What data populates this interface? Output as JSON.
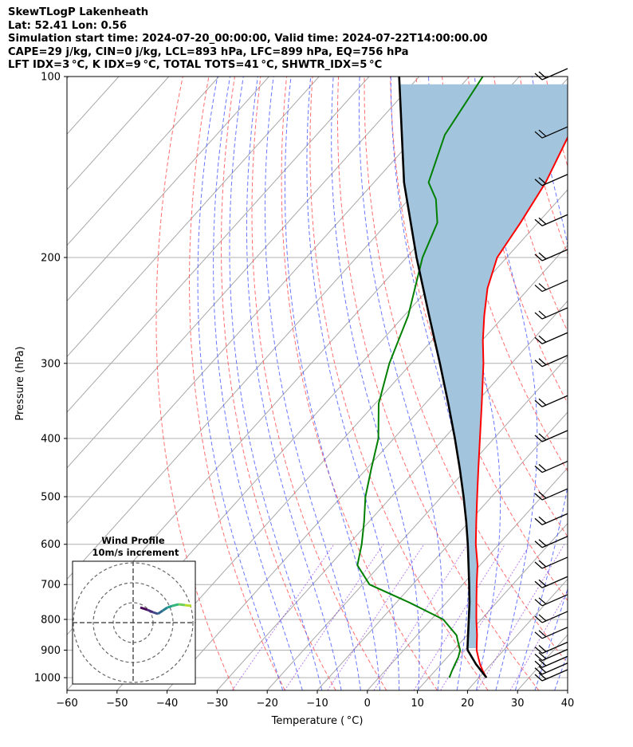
{
  "header": {
    "line1": "SkewTLogP Lakenheath",
    "line2": "Lat: 52.41   Lon: 0.56",
    "line3": "Simulation start time: 2024-07-20_00:00:00, Valid time: 2024-07-22T14:00:00.00",
    "line4": "CAPE=29 j/kg, CIN=0 j/kg, LCL=893 hPa, LFC=899 hPa, EQ=756 hPa",
    "line5": "LFT IDX=3 °C, K IDX=9 °C, TOTAL TOTS=41 °C, SHWTR_IDX=5 °C"
  },
  "colors": {
    "temperature": "#ff0000",
    "dewpoint": "#008000",
    "parcel": "#000000",
    "cape_fill": "#a2c5dd",
    "dry_adiabat": "#ff5555",
    "moist_adiabat": "#4455ff",
    "mixing_ratio": "#8a2be2",
    "isotherm_grid": "#aaaaaa"
  },
  "chart_data": {
    "type": "skewt",
    "xlabel": "Temperature ( °C)",
    "ylabel": "Pressure (hPa)",
    "xlim": [
      -60,
      40
    ],
    "ylim": [
      1050,
      100
    ],
    "yscale": "log",
    "x_ticks": [
      "−60",
      "−50",
      "−40",
      "−30",
      "−20",
      "−10",
      "0",
      "10",
      "20",
      "30",
      "40"
    ],
    "y_ticks": [
      "1000",
      "900",
      "800",
      "700",
      "600",
      "500",
      "400",
      "300",
      "200",
      "100"
    ],
    "temperature": [
      {
        "p": 1000,
        "t": 21.5
      },
      {
        "p": 975,
        "t": 19.6
      },
      {
        "p": 950,
        "t": 17.8
      },
      {
        "p": 925,
        "t": 16.2
      },
      {
        "p": 900,
        "t": 14.6
      },
      {
        "p": 875,
        "t": 13.3
      },
      {
        "p": 850,
        "t": 12.0
      },
      {
        "p": 800,
        "t": 9.0
      },
      {
        "p": 750,
        "t": 6.0
      },
      {
        "p": 700,
        "t": 2.8
      },
      {
        "p": 650,
        "t": -0.5
      },
      {
        "p": 600,
        "t": -4.6
      },
      {
        "p": 550,
        "t": -8.6
      },
      {
        "p": 500,
        "t": -12.9
      },
      {
        "p": 450,
        "t": -17.6
      },
      {
        "p": 400,
        "t": -22.8
      },
      {
        "p": 350,
        "t": -28.7
      },
      {
        "p": 300,
        "t": -35.6
      },
      {
        "p": 275,
        "t": -39.8
      },
      {
        "p": 250,
        "t": -44.0
      },
      {
        "p": 225,
        "t": -48.3
      },
      {
        "p": 200,
        "t": -51.9
      },
      {
        "p": 175,
        "t": -53.5
      },
      {
        "p": 150,
        "t": -55.7
      },
      {
        "p": 125,
        "t": -59.6
      },
      {
        "p": 110,
        "t": -63.6
      },
      {
        "p": 100,
        "t": -66.9
      }
    ],
    "dewpoint": [
      {
        "p": 1000,
        "t": 14.1
      },
      {
        "p": 975,
        "t": 13.4
      },
      {
        "p": 950,
        "t": 12.8
      },
      {
        "p": 925,
        "t": 12.2
      },
      {
        "p": 900,
        "t": 11.3
      },
      {
        "p": 875,
        "t": 9.6
      },
      {
        "p": 850,
        "t": 7.9
      },
      {
        "p": 800,
        "t": 2.4
      },
      {
        "p": 750,
        "t": -7.4
      },
      {
        "p": 700,
        "t": -18.6
      },
      {
        "p": 650,
        "t": -24.5
      },
      {
        "p": 600,
        "t": -27.4
      },
      {
        "p": 550,
        "t": -31.0
      },
      {
        "p": 500,
        "t": -35.2
      },
      {
        "p": 450,
        "t": -39.0
      },
      {
        "p": 400,
        "t": -43.1
      },
      {
        "p": 350,
        "t": -49.3
      },
      {
        "p": 300,
        "t": -54.4
      },
      {
        "p": 250,
        "t": -59.2
      },
      {
        "p": 200,
        "t": -66.8
      },
      {
        "p": 175,
        "t": -70.1
      },
      {
        "p": 160,
        "t": -74.6
      },
      {
        "p": 150,
        "t": -79.1
      },
      {
        "p": 125,
        "t": -84.4
      },
      {
        "p": 100,
        "t": -87.3
      }
    ],
    "parcel": [
      {
        "p": 1000,
        "t": 21.5
      },
      {
        "p": 950,
        "t": 17.0
      },
      {
        "p": 900,
        "t": 12.8
      },
      {
        "p": 893,
        "t": 12.4
      },
      {
        "p": 850,
        "t": 10.2
      },
      {
        "p": 800,
        "t": 7.5
      },
      {
        "p": 750,
        "t": 4.6
      },
      {
        "p": 700,
        "t": 1.3
      },
      {
        "p": 650,
        "t": -2.3
      },
      {
        "p": 600,
        "t": -6.2
      },
      {
        "p": 550,
        "t": -10.6
      },
      {
        "p": 500,
        "t": -15.6
      },
      {
        "p": 450,
        "t": -21.3
      },
      {
        "p": 400,
        "t": -27.8
      },
      {
        "p": 350,
        "t": -35.4
      },
      {
        "p": 300,
        "t": -44.3
      },
      {
        "p": 250,
        "t": -55.0
      },
      {
        "p": 200,
        "t": -68.0
      },
      {
        "p": 150,
        "t": -84.0
      },
      {
        "p": 100,
        "t": -104.0
      }
    ],
    "wind_levels": [
      1000,
      975,
      950,
      925,
      900,
      850,
      800,
      750,
      700,
      650,
      600,
      550,
      500,
      450,
      400,
      350,
      300,
      275,
      250,
      225,
      200,
      175,
      150,
      125,
      100
    ],
    "inset": {
      "title": "Wind Profile",
      "subtitle": "10m/s increment"
    }
  }
}
